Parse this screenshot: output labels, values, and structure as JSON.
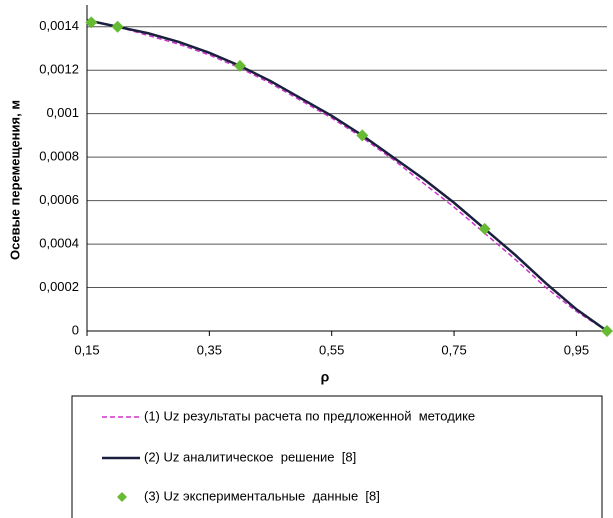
{
  "chart_data": {
    "type": "line",
    "x_label": "ρ",
    "y_label": "Осевые перемещения, м",
    "xlim": [
      0.15,
      1.0
    ],
    "ylim": [
      0,
      0.0015
    ],
    "xticks": [
      {
        "value": 0.15,
        "label": "0,15"
      },
      {
        "value": 0.35,
        "label": "0,35"
      },
      {
        "value": 0.55,
        "label": "0,55"
      },
      {
        "value": 0.75,
        "label": "0,75"
      },
      {
        "value": 0.95,
        "label": "0,95"
      }
    ],
    "yticks": [
      0,
      {
        "value": 0.0002,
        "label": "0,0002"
      },
      {
        "value": 0.0004,
        "label": "0,0004"
      },
      {
        "value": 0.0006,
        "label": "0,0006"
      },
      {
        "value": 0.0008,
        "label": "0,0008"
      },
      {
        "value": 0.001,
        "label": "0,001"
      },
      {
        "value": 0.0012,
        "label": "0,0012"
      },
      {
        "value": 0.0014,
        "label": "0,0014"
      }
    ],
    "grid": true,
    "series": [
      {
        "name": "(1) Uz результаты расчета по предложенной  методике",
        "color": "#cc33cc",
        "style": "dashed",
        "x": [
          0.15,
          0.2,
          0.25,
          0.3,
          0.35,
          0.4,
          0.45,
          0.5,
          0.55,
          0.6,
          0.65,
          0.7,
          0.75,
          0.8,
          0.85,
          0.9,
          0.95,
          1.0
        ],
        "values": [
          0.00143,
          0.0014,
          0.00136,
          0.00132,
          0.00127,
          0.00121,
          0.00114,
          0.00106,
          0.00098,
          0.00089,
          0.00079,
          0.00068,
          0.00057,
          0.00045,
          0.00033,
          0.0002,
          9e-05,
          0
        ]
      },
      {
        "name": "(2) Uz аналитическое  решение  [8]",
        "color": "#1a1f3d",
        "style": "solid",
        "x": [
          0.15,
          0.2,
          0.25,
          0.3,
          0.35,
          0.4,
          0.45,
          0.5,
          0.55,
          0.6,
          0.65,
          0.7,
          0.75,
          0.8,
          0.85,
          0.9,
          0.95,
          1.0
        ],
        "values": [
          0.00143,
          0.0014,
          0.00137,
          0.00133,
          0.00128,
          0.00122,
          0.00115,
          0.00107,
          0.00099,
          0.0009,
          0.0008,
          0.0007,
          0.00059,
          0.00047,
          0.00035,
          0.00022,
          0.0001,
          0
        ]
      },
      {
        "name": "(3) Uz экспериментальные  данные  [8]",
        "color": "#66bb33",
        "style": "markers",
        "x": [
          0.157,
          0.2,
          0.4,
          0.6,
          0.8,
          1.0
        ],
        "values": [
          0.00142,
          0.0014,
          0.00122,
          0.0009,
          0.00047,
          0
        ]
      }
    ]
  }
}
